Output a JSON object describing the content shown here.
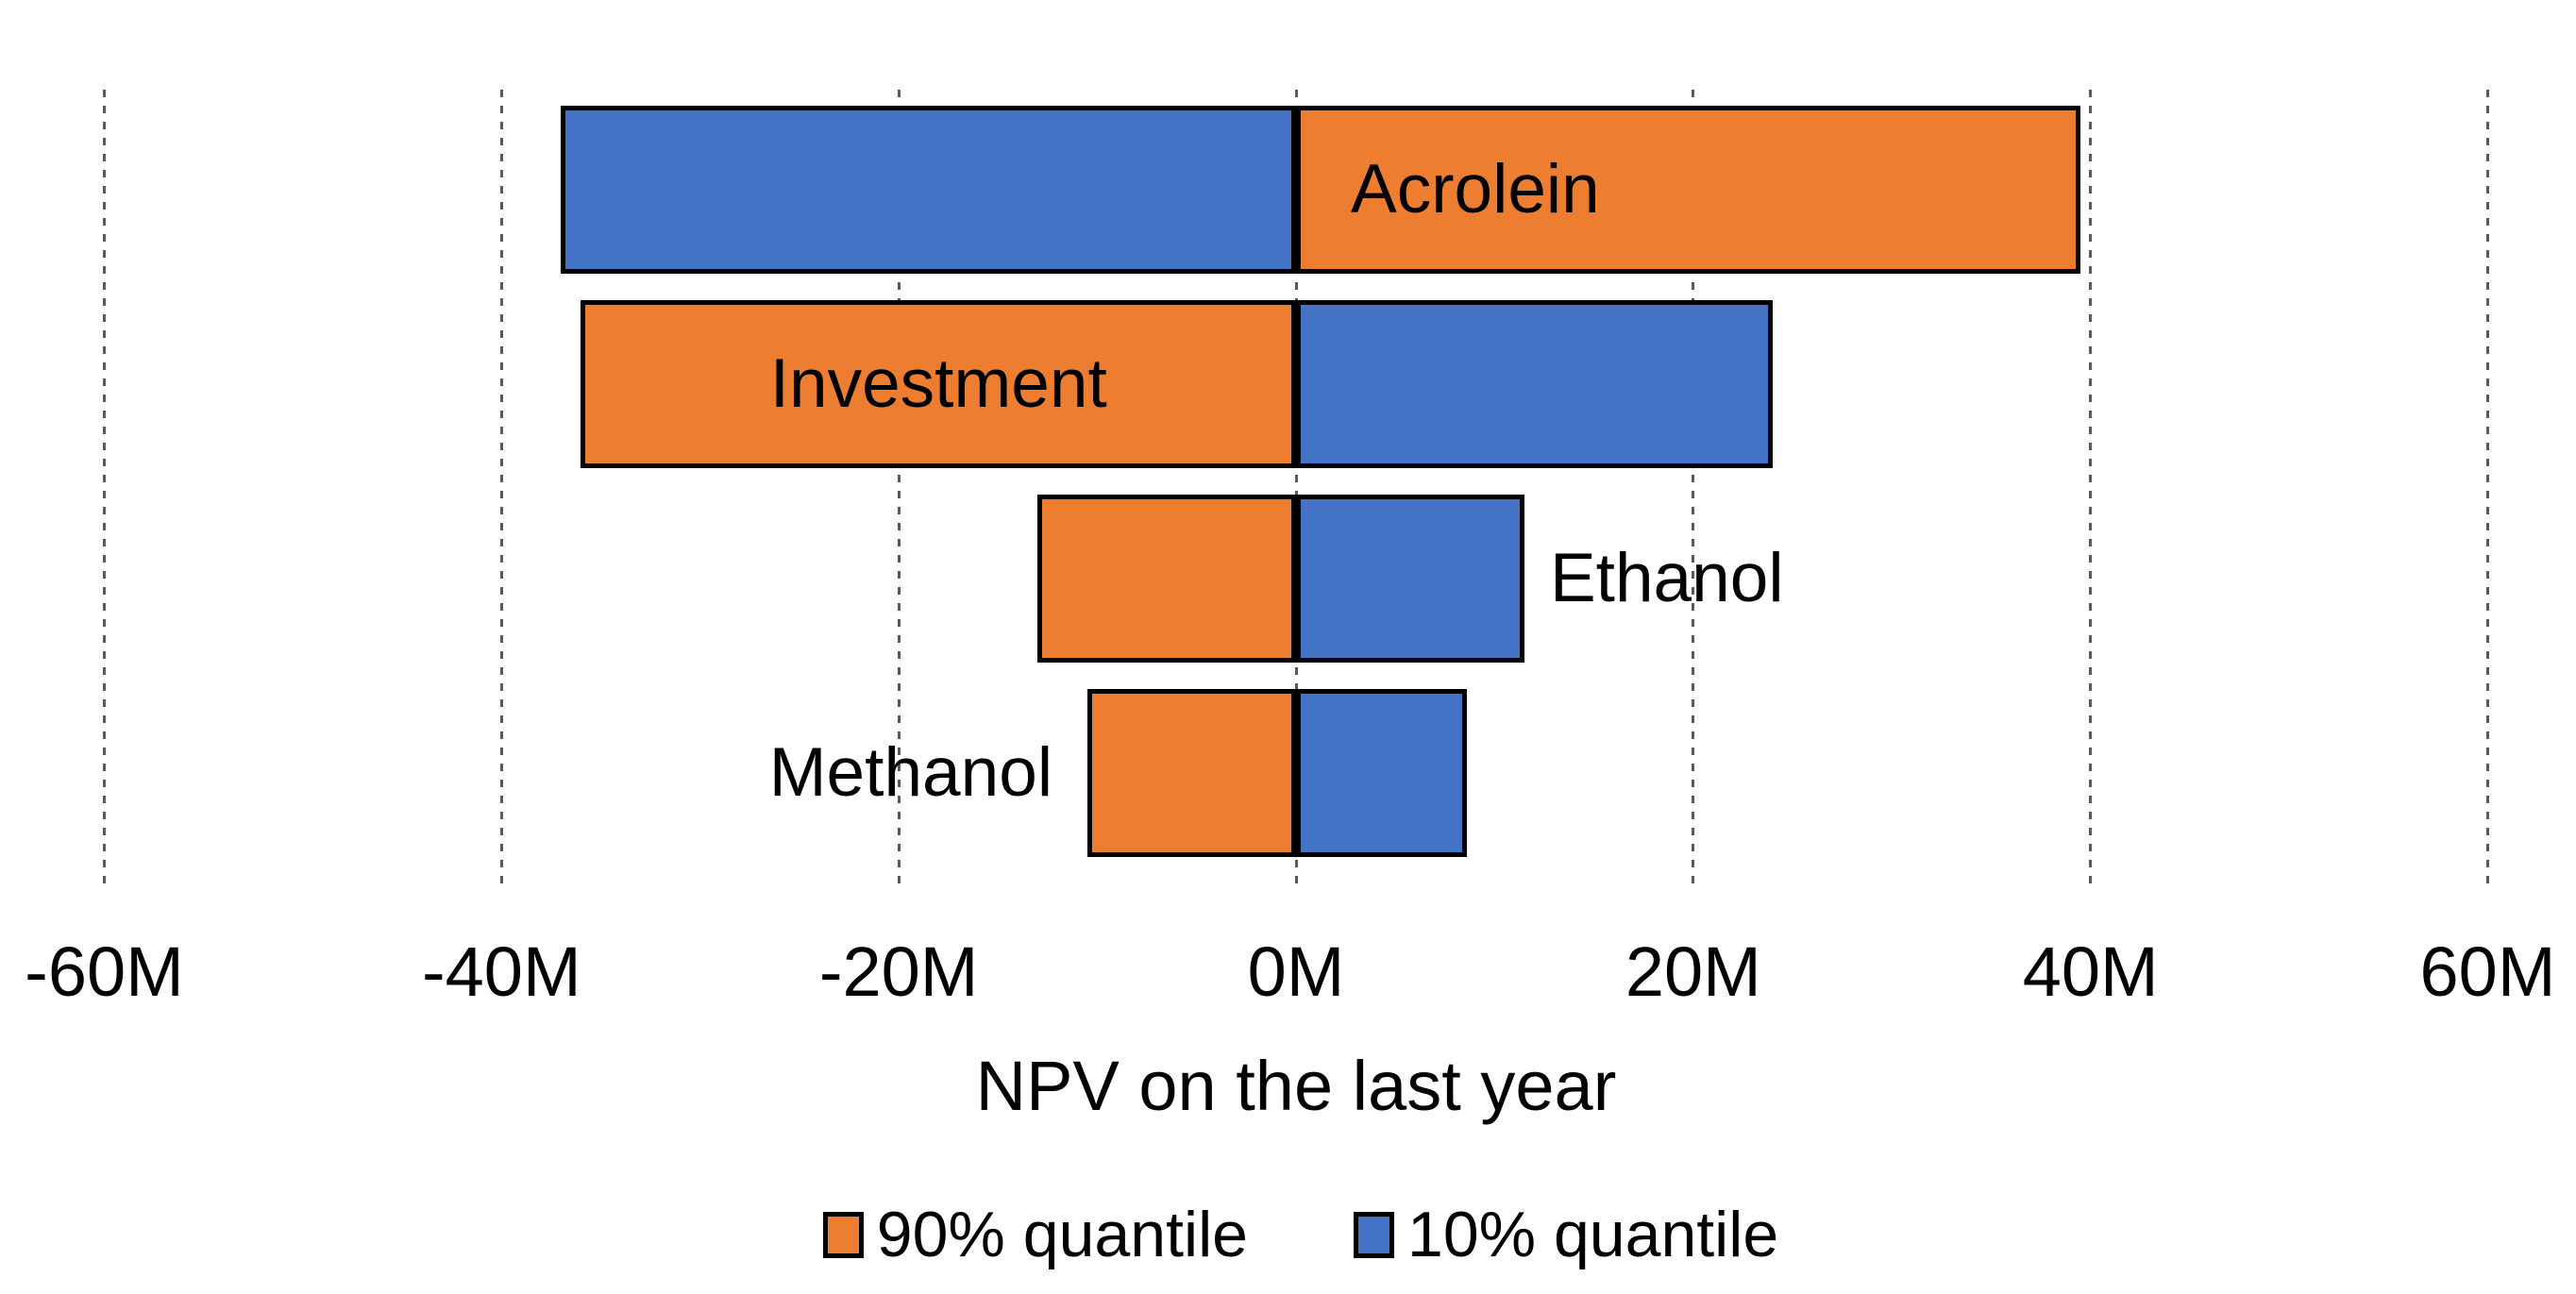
{
  "chart_data": {
    "type": "bar",
    "orientation": "horizontal",
    "subtype": "tornado-diverging-stacked",
    "title": "",
    "xlabel": "NPV on the last year",
    "ylabel": "",
    "categories": [
      "Acrolein",
      "Investment",
      "Ethanol",
      "Methanol"
    ],
    "series": [
      {
        "name": "90% quantile",
        "color": "#ED7D31",
        "values": [
          39.5,
          -36,
          -13,
          -10.5
        ]
      },
      {
        "name": "10% quantile",
        "color": "#4472C4",
        "values": [
          -37,
          24,
          11.5,
          8.6
        ]
      }
    ],
    "units": "M",
    "xlim": [
      -60,
      60
    ],
    "x_ticks": [
      {
        "value": -60,
        "label": "-60M"
      },
      {
        "value": -40,
        "label": "-40M"
      },
      {
        "value": -20,
        "label": "-20M"
      },
      {
        "value": 0,
        "label": "0M"
      },
      {
        "value": 20,
        "label": "20M"
      },
      {
        "value": 40,
        "label": "40M"
      },
      {
        "value": 60,
        "label": "60M"
      }
    ],
    "grid": "vertical-dashed",
    "gridline_color": "#595959",
    "bar_border_color": "#000000",
    "text_color": "#000000",
    "legend_position": "bottom",
    "category_label_placements": [
      "inside-positive-start",
      "inside-negative-center",
      "outside-positive-end",
      "outside-negative-end"
    ]
  }
}
